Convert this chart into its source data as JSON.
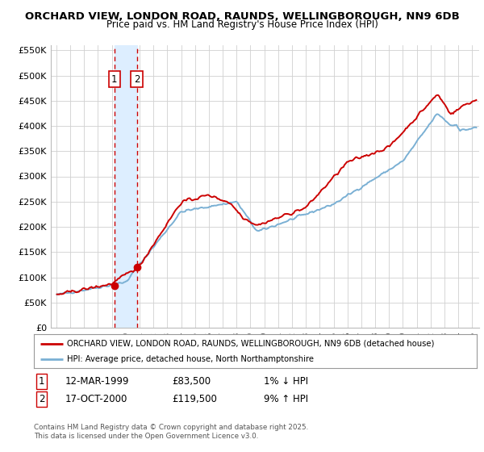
{
  "title_line1": "ORCHARD VIEW, LONDON ROAD, RAUNDS, WELLINGBOROUGH, NN9 6DB",
  "title_line2": "Price paid vs. HM Land Registry's House Price Index (HPI)",
  "legend_label1": "ORCHARD VIEW, LONDON ROAD, RAUNDS, WELLINGBOROUGH, NN9 6DB (detached house)",
  "legend_label2": "HPI: Average price, detached house, North Northamptonshire",
  "footer_line1": "Contains HM Land Registry data © Crown copyright and database right 2025.",
  "footer_line2": "This data is licensed under the Open Government Licence v3.0.",
  "sale1_date": "12-MAR-1999",
  "sale1_price": "£83,500",
  "sale1_hpi": "1% ↓ HPI",
  "sale2_date": "17-OCT-2000",
  "sale2_price": "£119,500",
  "sale2_hpi": "9% ↑ HPI",
  "sale1_x": 1999.19,
  "sale1_y": 83500,
  "sale2_x": 2000.8,
  "sale2_y": 119500,
  "ylim": [
    0,
    560000
  ],
  "yticks": [
    0,
    50000,
    100000,
    150000,
    200000,
    250000,
    300000,
    350000,
    400000,
    450000,
    500000,
    550000
  ],
  "ytick_labels": [
    "£0",
    "£50K",
    "£100K",
    "£150K",
    "£200K",
    "£250K",
    "£300K",
    "£350K",
    "£400K",
    "£450K",
    "£500K",
    "£550K"
  ],
  "xlim_left": 1994.6,
  "xlim_right": 2025.5,
  "line1_color": "#cc0000",
  "line2_color": "#7ab0d4",
  "grid_color": "#d0d0d0",
  "bg_color": "#ffffff",
  "vline_color": "#cc0000",
  "vshade_color": "#ddeeff"
}
